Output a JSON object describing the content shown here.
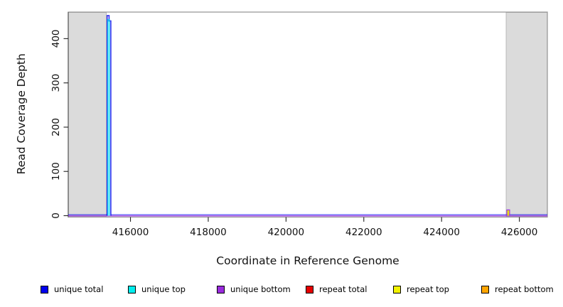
{
  "figure": {
    "xlabel": "Coordinate in Reference Genome",
    "ylabel": "Read Coverage Depth"
  },
  "legend": {
    "items": [
      {
        "label": "unique total",
        "color": "#0000EE"
      },
      {
        "label": "unique top",
        "color": "#00EEEE"
      },
      {
        "label": "unique bottom",
        "color": "#9A2BDE"
      },
      {
        "label": "repeat total",
        "color": "#E60000"
      },
      {
        "label": "repeat top",
        "color": "#F2F200"
      },
      {
        "label": "repeat bottom",
        "color": "#FFA500"
      }
    ]
  },
  "chart_data": {
    "type": "line",
    "title": "",
    "xlabel": "Coordinate in Reference Genome",
    "ylabel": "Read Coverage Depth",
    "x_ticks": [
      416000,
      418000,
      420000,
      422000,
      424000,
      426000
    ],
    "y_ticks": [
      0,
      100,
      200,
      300,
      400
    ],
    "xlim": [
      414400,
      426720
    ],
    "ylim": [
      0,
      460
    ],
    "grid": false,
    "legend_position": "bottom",
    "shaded_region_color": "#DBDBDB",
    "shaded_regions": [
      [
        414400,
        415380
      ],
      [
        425660,
        426720
      ]
    ],
    "series": [
      {
        "name": "unique total",
        "color": "#0000EE",
        "baseline": 0,
        "spikes": [
          {
            "x_start": 415400,
            "x_peak_end": 415450,
            "peak": 452,
            "step_value": 440,
            "x_end": 415495
          }
        ]
      },
      {
        "name": "unique top",
        "color": "#00D8EE",
        "baseline": 0,
        "spikes": [
          {
            "x_start": 415420,
            "x_end": 415458,
            "peak": 443
          }
        ]
      },
      {
        "name": "unique bottom",
        "color": "#9A2BDE",
        "baseline": 0,
        "spikes": [
          {
            "x_start": 425680,
            "x_end": 425748,
            "peak": 13
          }
        ]
      },
      {
        "name": "repeat total",
        "color": "#E60000",
        "baseline": 0,
        "spikes": []
      },
      {
        "name": "repeat top",
        "color": "#E8DE00",
        "baseline": 0,
        "spikes": [
          {
            "x_start": 425702,
            "x_end": 425726,
            "peak": 11
          }
        ]
      },
      {
        "name": "repeat bottom",
        "color": "#FFA500",
        "baseline": 0,
        "spikes": []
      }
    ]
  }
}
